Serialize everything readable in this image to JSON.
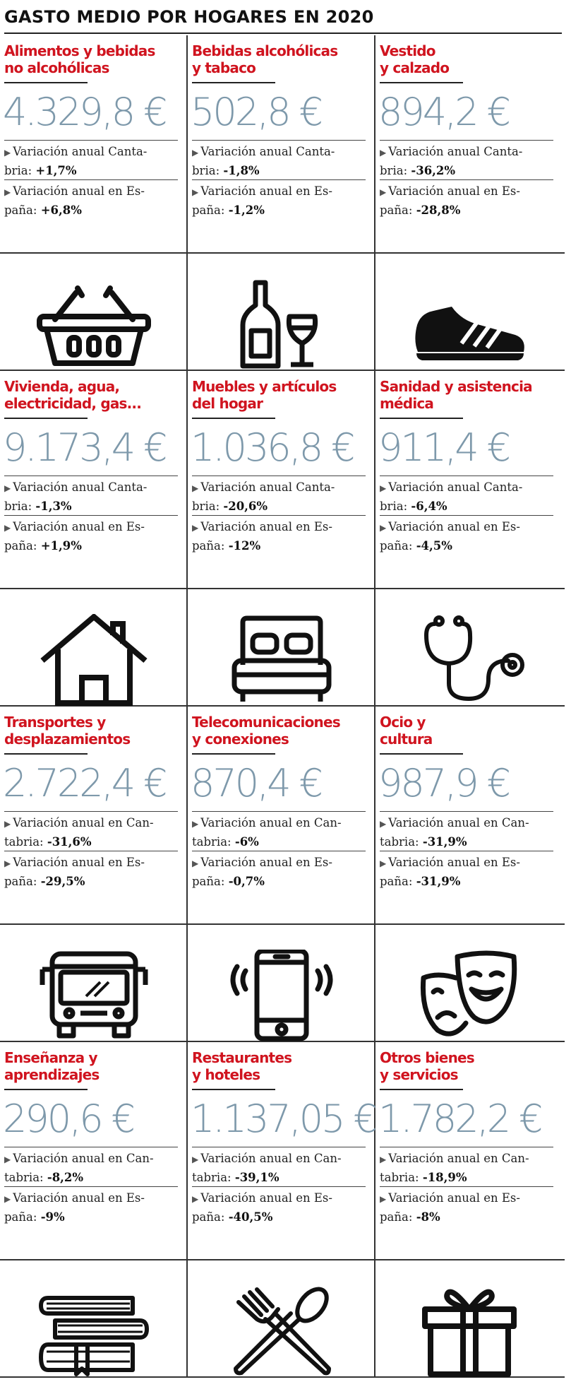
{
  "title": "GASTO MEDIO POR HOGARES EN 2020",
  "categories": [
    {
      "name": "Alimentos y bebidas\nno alcohólicas",
      "amount": "4.329,8 €",
      "cantabria_label": "Variación anual Canta-\nbria:",
      "cantabria_value": "+1,7%",
      "espana_label": "Variación anual en Es-\npaña:",
      "espana_value": "+6,8%",
      "icon": "shopping-basket-icon"
    },
    {
      "name": "Bebidas alcohólicas\ny tabaco",
      "amount": "502,8 €",
      "cantabria_label": "Variación anual Canta-\nbria:",
      "cantabria_value": "-1,8%",
      "espana_label": "Variación anual en Es-\npaña:",
      "espana_value": "-1,2%",
      "icon": "wine-bottle-glass-icon"
    },
    {
      "name": "Vestido\ny calzado",
      "amount": "894,2 €",
      "cantabria_label": "Variación anual Canta-\nbria:",
      "cantabria_value": "-36,2%",
      "espana_label": "Variación anual en Es-\npaña:",
      "espana_value": "-28,8%",
      "icon": "sneaker-icon"
    },
    {
      "name": "Vivienda, agua,\nelectricidad, gas...",
      "amount": "9.173,4 €",
      "cantabria_label": "Variación anual Canta-\nbria:",
      "cantabria_value": "-1,3%",
      "espana_label": "Variación anual en Es-\npaña:",
      "espana_value": "+1,9%",
      "icon": "house-icon"
    },
    {
      "name": "Muebles y artículos\ndel hogar",
      "amount": "1.036,8 €",
      "cantabria_label": "Variación anual Canta-\nbria:",
      "cantabria_value": "-20,6%",
      "espana_label": "Variación anual en Es-\npaña:",
      "espana_value": "-12%",
      "icon": "bed-icon"
    },
    {
      "name": "Sanidad y asistencia\nmédica",
      "amount": "911,4 €",
      "cantabria_label": "Variación anual Canta-\nbria:",
      "cantabria_value": "-6,4%",
      "espana_label": "Variación anual en Es-\npaña:",
      "espana_value": "-4,5%",
      "icon": "stethoscope-icon"
    },
    {
      "name": "Transportes y\ndesplazamientos",
      "amount": "2.722,4 €",
      "cantabria_label": "Variación anual en Can-\ntabria:",
      "cantabria_value": "-31,6%",
      "espana_label": "Variación anual en Es-\npaña:",
      "espana_value": "-29,5%",
      "icon": "bus-icon"
    },
    {
      "name": "Telecomunicaciones\ny conexiones",
      "amount": "870,4 €",
      "cantabria_label": "Variación anual en Can-\ntabria:",
      "cantabria_value": "-6%",
      "espana_label": "Variación anual en Es-\npaña:",
      "espana_value": "-0,7%",
      "icon": "smartphone-icon"
    },
    {
      "name": "Ocio y\ncultura",
      "amount": "987,9 €",
      "cantabria_label": "Variación anual en Can-\ntabria:",
      "cantabria_value": "-31,9%",
      "espana_label": "Variación anual en Es-\npaña:",
      "espana_value": "-31,9%",
      "icon": "theater-masks-icon"
    },
    {
      "name": "Enseñanza y\naprendizajes",
      "amount": "290,6 €",
      "cantabria_label": "Variación anual en Can-\ntabria:",
      "cantabria_value": "-8,2%",
      "espana_label": "Variación anual en Es-\npaña:",
      "espana_value": "-9%",
      "icon": "books-icon"
    },
    {
      "name": "Restaurantes\ny hoteles",
      "amount": "1.137,05 €",
      "cantabria_label": "Variación anual en Can-\ntabria:",
      "cantabria_value": "-39,1%",
      "espana_label": "Variación anual en Es-\npaña:",
      "espana_value": "-40,5%",
      "icon": "fork-spoon-icon"
    },
    {
      "name": "Otros bienes\ny servicios",
      "amount": "1.782,2 €",
      "cantabria_label": "Variación anual en Can-\ntabria:",
      "cantabria_value": "-18,9%",
      "espana_label": "Variación anual en Es-\npaña:",
      "espana_value": "-8%",
      "icon": "gift-icon"
    }
  ],
  "colors": {
    "category": "#d0141f",
    "amount": "#7e99ab",
    "text": "#222222"
  }
}
